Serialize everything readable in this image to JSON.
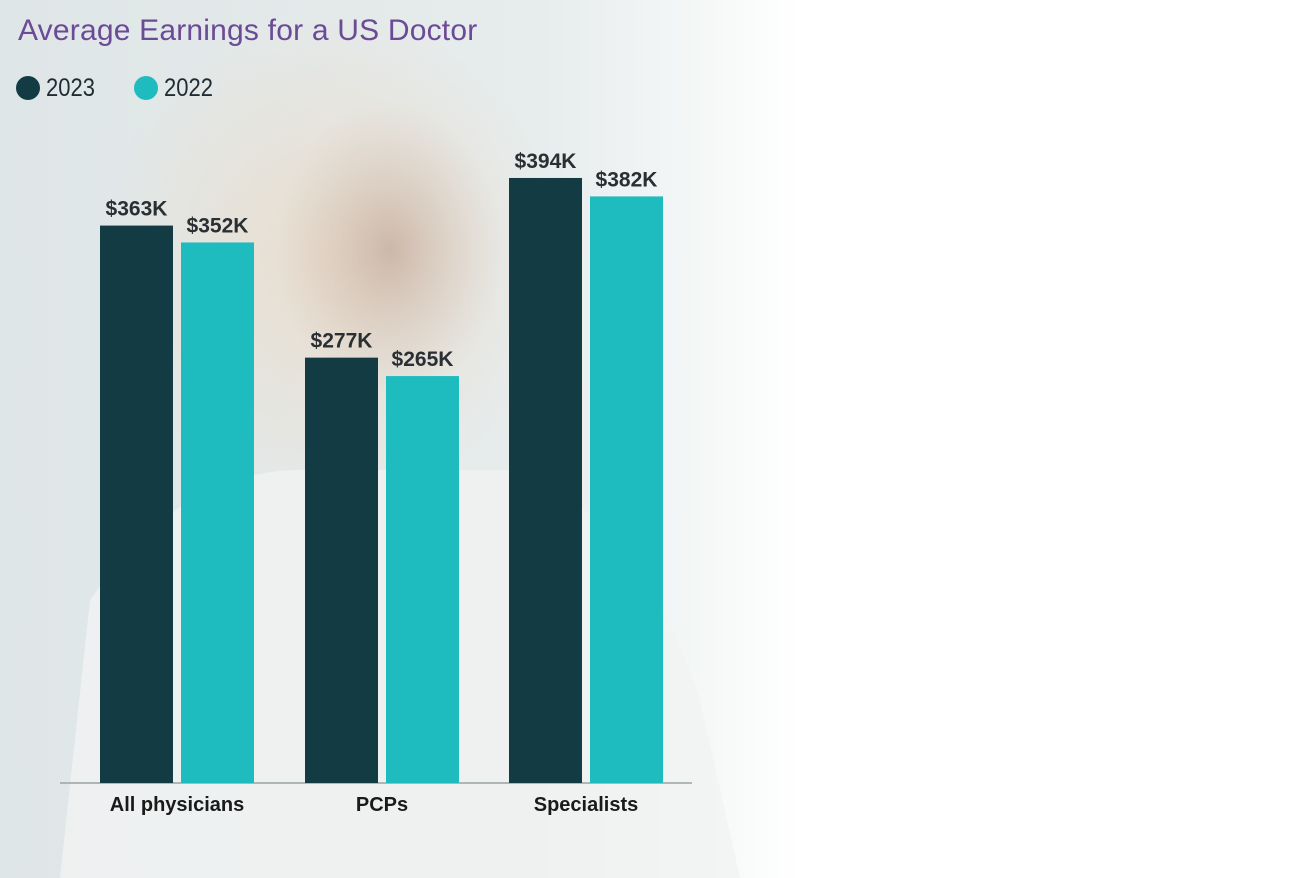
{
  "chart_data": {
    "type": "bar",
    "title": "Average Earnings for a US Doctor",
    "xlabel": "",
    "ylabel": "",
    "categories": [
      "All physicians",
      "PCPs",
      "Specialists"
    ],
    "series": [
      {
        "name": "2023",
        "color": "#123b44",
        "values": [
          363,
          277,
          394
        ],
        "labels": [
          "$363K",
          "$277K",
          "$394K"
        ]
      },
      {
        "name": "2022",
        "color": "#1fbcbf",
        "values": [
          352,
          265,
          382
        ],
        "labels": [
          "$352K",
          "$265K",
          "$382K"
        ]
      }
    ],
    "ylim": [
      0,
      400
    ],
    "grid": false,
    "legend_position": "top-left",
    "title_color": "#6b4a96"
  }
}
